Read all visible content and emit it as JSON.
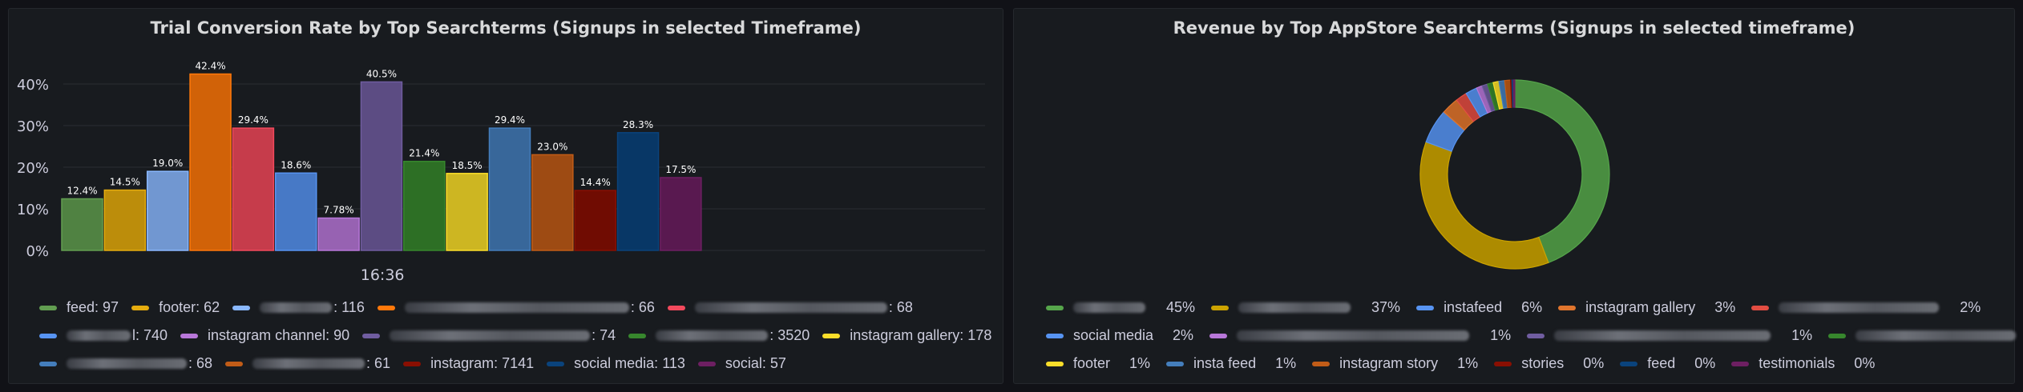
{
  "left_panel": {
    "title": "Trial Conversion Rate by Top Searchterms (Signups in selected Timeframe)"
  },
  "right_panel": {
    "title": "Revenue by Top AppStore Searchterms (Signups in selected timeframe)"
  },
  "chart_data": [
    {
      "type": "bar",
      "title": "Trial Conversion Rate by Top Searchterms (Signups in selected Timeframe)",
      "xlabel": "",
      "ylabel": "",
      "ylim": [
        0,
        45
      ],
      "y_ticks": [
        "0%",
        "10%",
        "20%",
        "30%",
        "40%"
      ],
      "x_tick": "16:36",
      "grid": true,
      "legend_position": "bottom",
      "series": [
        {
          "name": "feed",
          "value": 12.4,
          "label": "12.4%",
          "count": "97",
          "color": "#629e51",
          "redacted": false
        },
        {
          "name": "footer",
          "value": 14.5,
          "label": "14.5%",
          "count": "62",
          "color": "#e5ac0e",
          "redacted": false
        },
        {
          "name": "",
          "value": 19.0,
          "label": "19.0%",
          "count": "116",
          "color": "#8ab8ff",
          "redacted": true,
          "blur_w": 90
        },
        {
          "name": "",
          "value": 42.4,
          "label": "42.4%",
          "count": "66",
          "color": "#ff780a",
          "redacted": true,
          "blur_w": 280
        },
        {
          "name": "",
          "value": 29.4,
          "label": "29.4%",
          "count": "68",
          "color": "#f2495c",
          "redacted": true,
          "blur_w": 240
        },
        {
          "name": "",
          "value": 18.6,
          "label": "18.6%",
          "count": "740",
          "color": "#5794f2",
          "redacted": true,
          "blur_w": 80,
          "suffix": "l"
        },
        {
          "name": "instagram channel",
          "value": 7.78,
          "label": "7.78%",
          "count": "90",
          "color": "#b877d9",
          "redacted": false
        },
        {
          "name": "",
          "value": 40.5,
          "label": "40.5%",
          "count": "74",
          "color": "#705da0",
          "redacted": true,
          "blur_w": 250
        },
        {
          "name": "",
          "value": 21.4,
          "label": "21.4%",
          "count": "3520",
          "color": "#37872d",
          "redacted": true,
          "blur_w": 140
        },
        {
          "name": "instagram gallery",
          "value": 18.5,
          "label": "18.5%",
          "count": "178",
          "color": "#fade2a",
          "redacted": false
        },
        {
          "name": "",
          "value": 29.4,
          "label": "29.4%",
          "count": "68",
          "color": "#447ebc",
          "redacted": true,
          "blur_w": 150
        },
        {
          "name": "",
          "value": 23.0,
          "label": "23.0%",
          "count": "61",
          "color": "#c15c17",
          "redacted": true,
          "blur_w": 140
        },
        {
          "name": "instagram",
          "value": 14.4,
          "label": "14.4%",
          "count": "7141",
          "color": "#890f02",
          "redacted": false
        },
        {
          "name": "social media",
          "value": 28.3,
          "label": "28.3%",
          "count": "113",
          "color": "#0a437c",
          "redacted": false
        },
        {
          "name": "social",
          "value": 17.5,
          "label": "17.5%",
          "count": "57",
          "color": "#6d1f62",
          "redacted": false
        }
      ]
    },
    {
      "type": "pie",
      "title": "Revenue by Top AppStore Searchterms (Signups in selected timeframe)",
      "legend_position": "bottom",
      "slices": [
        {
          "name": "",
          "value": 45,
          "percent": "45%",
          "color": "#56a64b",
          "redacted": true,
          "blur_w": 90
        },
        {
          "name": "",
          "value": 37,
          "percent": "37%",
          "color": "#cca300",
          "redacted": true,
          "blur_w": 140
        },
        {
          "name": "instafeed",
          "value": 6,
          "percent": "6%",
          "color": "#5794f2",
          "redacted": false
        },
        {
          "name": "instagram gallery",
          "value": 3,
          "percent": "3%",
          "color": "#e0752d",
          "redacted": false
        },
        {
          "name": "",
          "value": 2,
          "percent": "2%",
          "color": "#e24d42",
          "redacted": true,
          "blur_w": 200
        },
        {
          "name": "social media",
          "value": 2,
          "percent": "2%",
          "color": "#5794f2",
          "redacted": false
        },
        {
          "name": "",
          "value": 1,
          "percent": "1%",
          "color": "#b877d9",
          "redacted": true,
          "blur_w": 290
        },
        {
          "name": "",
          "value": 1,
          "percent": "1%",
          "color": "#705da0",
          "redacted": true,
          "blur_w": 270
        },
        {
          "name": "",
          "value": 1,
          "percent": "1%",
          "color": "#37872d",
          "redacted": true,
          "blur_w": 200
        },
        {
          "name": "footer",
          "value": 1,
          "percent": "1%",
          "color": "#fade2a",
          "redacted": false
        },
        {
          "name": "insta feed",
          "value": 1,
          "percent": "1%",
          "color": "#447ebc",
          "redacted": false
        },
        {
          "name": "instagram story",
          "value": 1,
          "percent": "1%",
          "color": "#c15c17",
          "redacted": false
        },
        {
          "name": "stories",
          "value": 0,
          "percent": "0%",
          "color": "#890f02",
          "redacted": false
        },
        {
          "name": "feed",
          "value": 0,
          "percent": "0%",
          "color": "#0a437c",
          "redacted": false
        },
        {
          "name": "testimonials",
          "value": 0,
          "percent": "0%",
          "color": "#6d1f62",
          "redacted": false
        }
      ]
    }
  ]
}
